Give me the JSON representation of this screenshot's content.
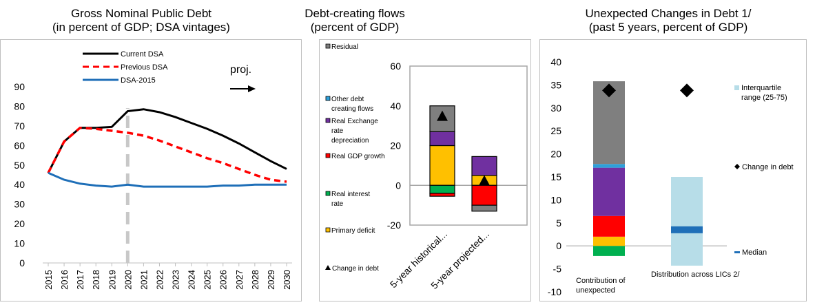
{
  "charts": {
    "left": {
      "title_line1": "Gross Nominal Public Debt",
      "title_line2": "(in percent of GDP; DSA vintages)"
    },
    "middle": {
      "title_line1": "Debt-creating flows",
      "title_line2": "(percent of GDP)"
    },
    "right": {
      "title_line1": "Unexpected Changes in Debt 1/",
      "title_line2": "(past 5 years, percent of GDP)"
    }
  },
  "chart_data": [
    {
      "id": "left",
      "type": "line",
      "title": "Gross Nominal Public Debt",
      "subtitle": "(in percent of GDP; DSA vintages)",
      "x": [
        2015,
        2016,
        2017,
        2018,
        2019,
        2020,
        2021,
        2022,
        2023,
        2024,
        2025,
        2026,
        2027,
        2028,
        2029,
        2030
      ],
      "ylim": [
        0,
        90
      ],
      "yticks": [
        0,
        10,
        20,
        30,
        40,
        50,
        60,
        70,
        80,
        90
      ],
      "annotation": "proj.",
      "projection_start": 2020,
      "series": [
        {
          "name": "Current DSA",
          "color": "#000000",
          "dash": "solid",
          "values": [
            46,
            62,
            69,
            69,
            69.5,
            77.5,
            78.5,
            77,
            74.5,
            71.5,
            68.5,
            65,
            61,
            56.5,
            52,
            48
          ]
        },
        {
          "name": "Previous DSA",
          "color": "#ff0000",
          "dash": "dashed",
          "values": [
            46,
            62,
            69,
            68.5,
            67.5,
            66.5,
            65,
            62.5,
            59.5,
            56.5,
            53.5,
            51,
            48,
            45,
            42.5,
            41.5
          ]
        },
        {
          "name": "DSA-2015",
          "color": "#1f6fb8",
          "dash": "solid",
          "values": [
            46,
            42.5,
            40.5,
            39.5,
            39,
            40,
            39,
            39,
            39,
            39,
            39,
            39.5,
            39.5,
            40,
            40,
            40
          ]
        }
      ]
    },
    {
      "id": "middle",
      "type": "bar",
      "stacked": true,
      "title": "Debt-creating flows",
      "subtitle": "(percent of GDP)",
      "categories": [
        "5-year historical...",
        "5-year projected..."
      ],
      "ylim": [
        -20,
        60
      ],
      "yticks": [
        -20,
        0,
        20,
        40,
        60
      ],
      "series": [
        {
          "name": "Residual",
          "color": "#7f7f7f",
          "values": [
            13,
            0
          ]
        },
        {
          "name": "Other debt creating flows",
          "color": "#2e9fd9",
          "values": [
            0,
            0
          ]
        },
        {
          "name": "Real Exchange rate depreciation",
          "color": "#7030a0",
          "values": [
            7,
            9.5
          ]
        },
        {
          "name": "Real GDP growth",
          "color": "#ff0000",
          "values": [
            -1.5,
            -10
          ]
        },
        {
          "name": "Real interest rate",
          "color": "#00b050",
          "values": [
            -4,
            0
          ]
        },
        {
          "name": "Primary deficit",
          "color": "#ffc000",
          "values": [
            20,
            5
          ]
        }
      ],
      "extra_negative": {
        "name": "Residual",
        "values": [
          0,
          -3
        ]
      },
      "markers": {
        "name": "Change in debt",
        "shape": "triangle",
        "values": [
          34.5,
          2
        ]
      }
    },
    {
      "id": "right",
      "type": "bar",
      "stacked": true,
      "title": "Unexpected Changes in Debt 1/",
      "subtitle": "(past 5 years, percent of GDP)",
      "categories": [
        "Contribution of unexpected",
        "Distribution across LICs 2/"
      ],
      "ylim": [
        -10,
        40
      ],
      "yticks": [
        -10,
        -5,
        0,
        5,
        10,
        15,
        20,
        25,
        30,
        35,
        40
      ],
      "contribution_segments": [
        {
          "color": "#00b050",
          "from": -2.2,
          "to": 0
        },
        {
          "color": "#ffc000",
          "from": 0,
          "to": 2
        },
        {
          "color": "#ff0000",
          "from": 2,
          "to": 6.5
        },
        {
          "color": "#7030a0",
          "from": 6.5,
          "to": 17
        },
        {
          "color": "#2e9fd9",
          "from": 17,
          "to": 17.8
        },
        {
          "color": "#7f7f7f",
          "from": 17.8,
          "to": 35.8
        }
      ],
      "interquartile_range": {
        "name": "Interquartile range (25-75)",
        "color": "#b7dde8",
        "from": -4.3,
        "to": 15
      },
      "median": {
        "name": "Median",
        "color": "#1f6fb8",
        "value": 3.5
      },
      "change_in_debt": {
        "name": "Change in debt",
        "shape": "diamond",
        "values": [
          33.8,
          33.8
        ]
      }
    }
  ]
}
